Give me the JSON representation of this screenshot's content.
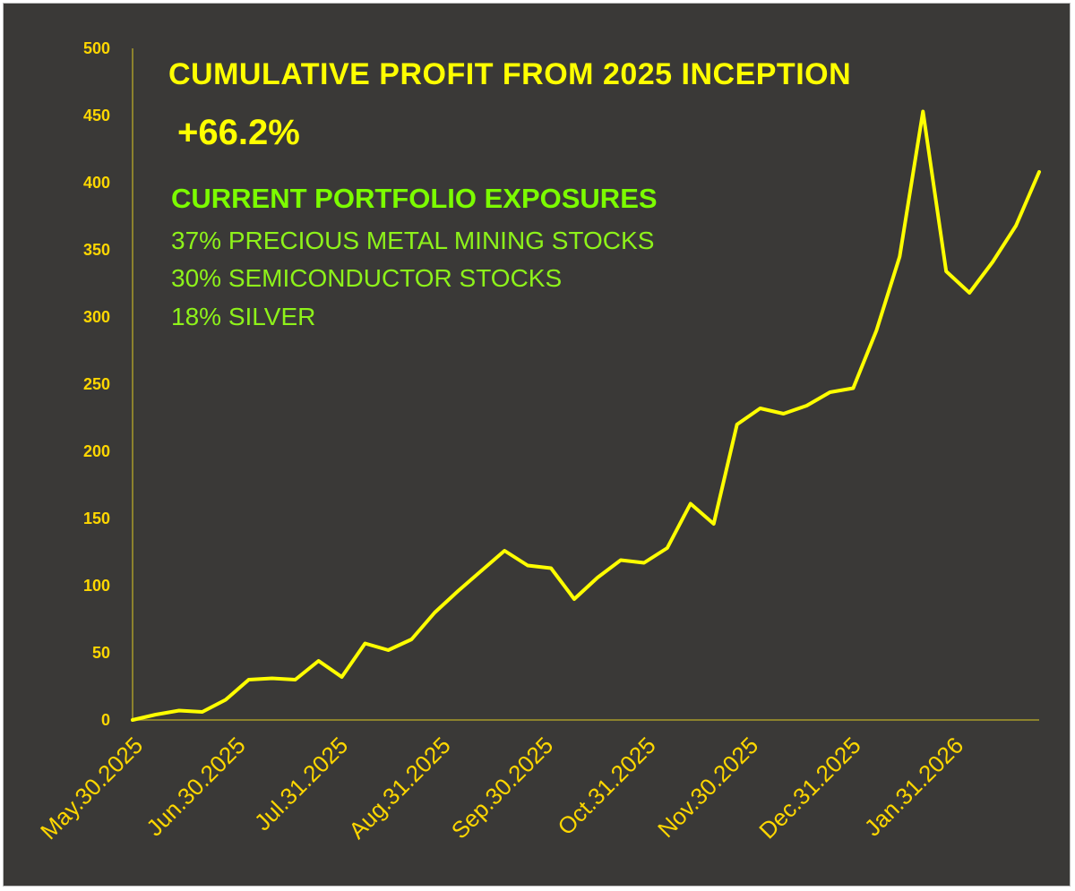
{
  "colors": {
    "background": "#3a3937",
    "line": "#ffff00",
    "axis_text": "#ffd700",
    "exposure_text": "#8ef21a",
    "exposure_heading": "#7cfc00"
  },
  "annotations": {
    "title": "CUMULATIVE PROFIT FROM 2025 INCEPTION",
    "headline_value": "+66.2%",
    "exposure_heading": "CURRENT PORTFOLIO EXPOSURES",
    "exposures": [
      "37% PRECIOUS METAL MINING STOCKS",
      "30% SEMICONDUCTOR STOCKS",
      "18% SILVER"
    ]
  },
  "chart_data": {
    "type": "line",
    "title": "CUMULATIVE PROFIT FROM 2025 INCEPTION",
    "xlabel": "",
    "ylabel": "",
    "ylim": [
      0,
      500
    ],
    "yticks": [
      0,
      50,
      100,
      150,
      200,
      250,
      300,
      350,
      400,
      450,
      500
    ],
    "xtick_labels": [
      "May.30.2025",
      "Jun.30.2025",
      "Jul.31.2025",
      "Aug.31.2025",
      "Sep.30.2025",
      "Oct.31.2025",
      "Nov.30.2025",
      "Dec.31.2025",
      "Jan.31.2026"
    ],
    "grid": false,
    "legend": "none",
    "series": [
      {
        "values": [
          0,
          4,
          7,
          6,
          15,
          30,
          31,
          30,
          44,
          32,
          57,
          52,
          60,
          80,
          96,
          111,
          126,
          115,
          113,
          90,
          106,
          119,
          117,
          128,
          161,
          146,
          220,
          232,
          228,
          234,
          244,
          247,
          290,
          345,
          453,
          334,
          318,
          341,
          368,
          408
        ]
      }
    ]
  }
}
